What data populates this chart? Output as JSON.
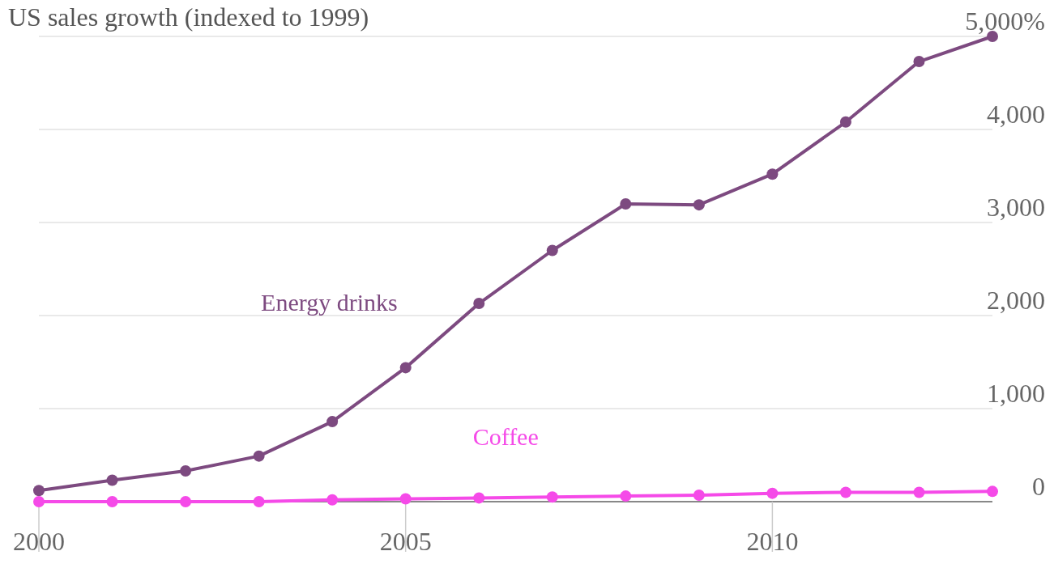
{
  "chart_data": {
    "type": "line",
    "title": "US sales growth (indexed to 1999)",
    "x": [
      2000,
      2001,
      2002,
      2003,
      2004,
      2005,
      2006,
      2007,
      2008,
      2009,
      2010,
      2011,
      2012,
      2013
    ],
    "series": [
      {
        "name": "Energy drinks",
        "color": "#7d4a80",
        "values": [
          120,
          230,
          330,
          490,
          860,
          1440,
          2130,
          2700,
          3200,
          3190,
          3520,
          4080,
          4730,
          5000
        ]
      },
      {
        "name": "Coffee",
        "color": "#f54ae8",
        "values": [
          0,
          0,
          0,
          0,
          20,
          30,
          40,
          50,
          60,
          70,
          90,
          100,
          100,
          110
        ]
      }
    ],
    "xlim": [
      2000,
      2013
    ],
    "xticks": [
      2000,
      2005,
      2010
    ],
    "ylim": [
      0,
      5000
    ],
    "yticks": [
      {
        "value": 0,
        "label": "0"
      },
      {
        "value": 1000,
        "label": "1,000"
      },
      {
        "value": 2000,
        "label": "2,000"
      },
      {
        "value": 3000,
        "label": "3,000"
      },
      {
        "value": 4000,
        "label": "4,000"
      },
      {
        "value": 5000,
        "label": "5,000%"
      }
    ],
    "grid": "y",
    "marker": "circle",
    "line_style": "solid"
  }
}
